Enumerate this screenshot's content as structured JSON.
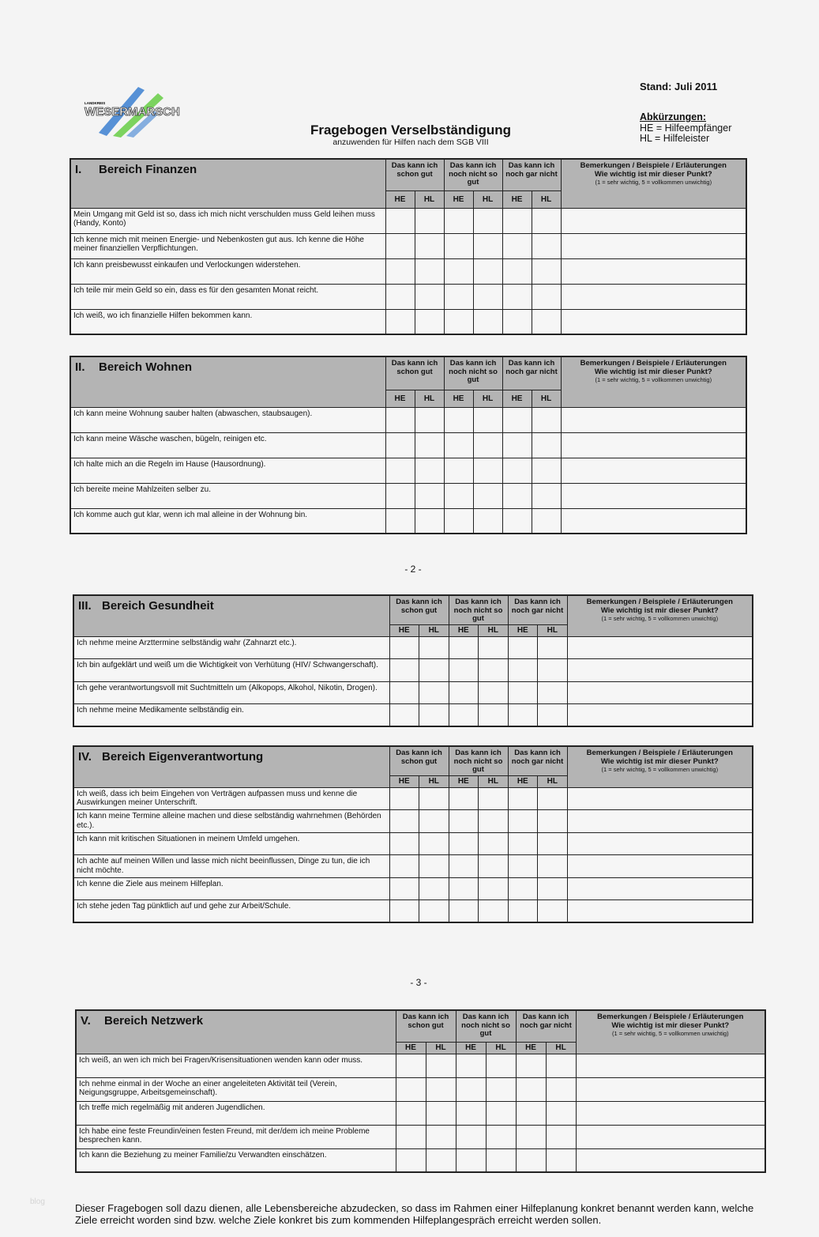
{
  "header": {
    "logo_text": "LANDKREIS WESERMARSCH",
    "logo_colors": [
      "#3b7fd0",
      "#66cc44"
    ],
    "stand": "Stand: Juli 2011",
    "abbreviations_heading": "Abkürzungen:",
    "abbreviations": [
      "HE = Hilfeempfänger",
      "HL = Hilfeleister"
    ],
    "title": "Fragebogen Verselbständigung",
    "subtitle": "anzuwenden für Hilfen nach dem SGB VIII"
  },
  "columns": {
    "groups": [
      "Das kann ich schon gut",
      "Das kann ich noch nicht so gut",
      "Das kann ich noch gar nicht"
    ],
    "sub": [
      "HE",
      "HL"
    ],
    "remarks_title": "Bemerkungen / Beispiele / Erläuterungen",
    "remarks_question": "Wie wichtig ist mir dieser Punkt?",
    "remarks_scale": "(1 = sehr wichtig, 5 = vollkommen unwichtig)"
  },
  "sections": [
    {
      "number": "I.",
      "title": "Bereich Finanzen",
      "items": [
        "Mein Umgang mit Geld ist so, dass ich mich nicht verschulden muss Geld leihen muss (Handy, Konto)",
        "Ich kenne mich mit meinen Energie- und Nebenkosten gut aus. Ich kenne die Höhe meiner finanziellen Verpflichtungen.",
        "Ich kann preisbewusst einkaufen und Verlockungen widerstehen.",
        "Ich teile mir mein Geld so ein, dass es für den gesamten Monat reicht.",
        "Ich weiß, wo ich finanzielle Hilfen bekommen kann."
      ]
    },
    {
      "number": "II.",
      "title": "Bereich Wohnen",
      "items": [
        "Ich kann meine Wohnung sauber halten (abwaschen, staubsaugen).",
        "Ich kann meine Wäsche waschen, bügeln, reinigen etc.",
        "Ich halte mich an die Regeln im Hause (Hausordnung).",
        "Ich bereite meine Mahlzeiten selber zu.",
        "Ich komme auch gut klar, wenn ich mal alleine in der Wohnung bin."
      ]
    },
    {
      "number": "III.",
      "title": "Bereich Gesundheit",
      "items": [
        "Ich nehme meine Arzttermine selbständig wahr (Zahnarzt etc.).",
        "Ich bin aufgeklärt und weiß um die Wichtigkeit von Verhütung (HIV/ Schwangerschaft).",
        "Ich gehe verantwortungsvoll mit Suchtmitteln um (Alkopops, Alkohol, Nikotin, Drogen).",
        "Ich nehme meine Medikamente selbständig ein."
      ]
    },
    {
      "number": "IV.",
      "title": "Bereich Eigenverantwortung",
      "items": [
        "Ich weiß, dass ich beim Eingehen von Verträgen aufpassen muss und kenne die Auswirkungen meiner Unterschrift.",
        "Ich kann meine Termine alleine machen und diese selbständig wahrnehmen (Behörden etc.).",
        "Ich kann mit kritischen Situationen in meinem Umfeld umgehen.",
        "Ich achte auf meinen Willen und lasse mich nicht beeinflussen, Dinge zu tun, die ich nicht möchte.",
        "Ich kenne die Ziele aus meinem Hilfeplan.",
        "Ich stehe jeden Tag pünktlich auf und gehe zur Arbeit/Schule."
      ]
    },
    {
      "number": "V.",
      "title": "Bereich Netzwerk",
      "items": [
        "Ich weiß, an wen ich mich bei Fragen/Krisensituationen wenden kann oder muss.",
        "Ich nehme einmal in der Woche an einer angeleiteten Aktivität teil (Verein, Neigungsgruppe, Arbeitsgemeinschaft).",
        "Ich treffe mich regelmäßig mit anderen Jugendlichen.",
        "Ich habe eine feste Freundin/einen festen Freund, mit der/dem ich meine Probleme besprechen kann.",
        "Ich kann die Beziehung zu meiner Familie/zu Verwandten einschätzen."
      ]
    }
  ],
  "page_numbers": [
    "- 2 -",
    "- 3 -"
  ],
  "watermark": "blog",
  "footer": "Dieser Fragebogen soll dazu dienen, alle Lebensbereiche abzudecken, so dass im Rahmen einer Hilfeplanung konkret benannt werden kann, welche Ziele erreicht worden sind bzw. welche Ziele konkret bis zum kommenden Hilfeplangespräch erreicht werden sollen."
}
